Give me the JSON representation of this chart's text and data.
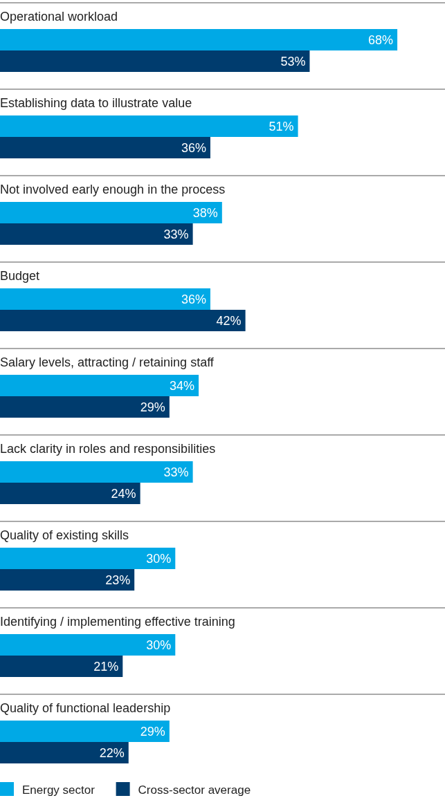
{
  "chart_data": {
    "type": "bar",
    "orientation": "horizontal",
    "legend": "bottom left",
    "categories": [
      "Operational workload",
      "Establishing data to illustrate value",
      "Not involved early enough in the process",
      "Budget",
      "Salary levels, attracting / retaining staff",
      "Lack clarity in roles and responsibilities",
      "Quality of existing skills",
      "Identifying / implementing effective training",
      "Quality of functional leadership"
    ],
    "series": [
      {
        "name": "Energy sector",
        "color": "#00a9e6",
        "values": [
          68,
          51,
          38,
          36,
          34,
          33,
          30,
          30,
          29
        ],
        "value_labels": [
          "68%",
          "51%",
          "38%",
          "36%",
          "34%",
          "33%",
          "30%",
          "30%",
          "29%"
        ]
      },
      {
        "name": "Cross-sector average",
        "color": "#003c6e",
        "values": [
          53,
          36,
          33,
          42,
          29,
          24,
          23,
          21,
          22
        ],
        "value_labels": [
          "53%",
          "36%",
          "33%",
          "42%",
          "29%",
          "24%",
          "23%",
          "21%",
          "22%"
        ]
      }
    ]
  }
}
